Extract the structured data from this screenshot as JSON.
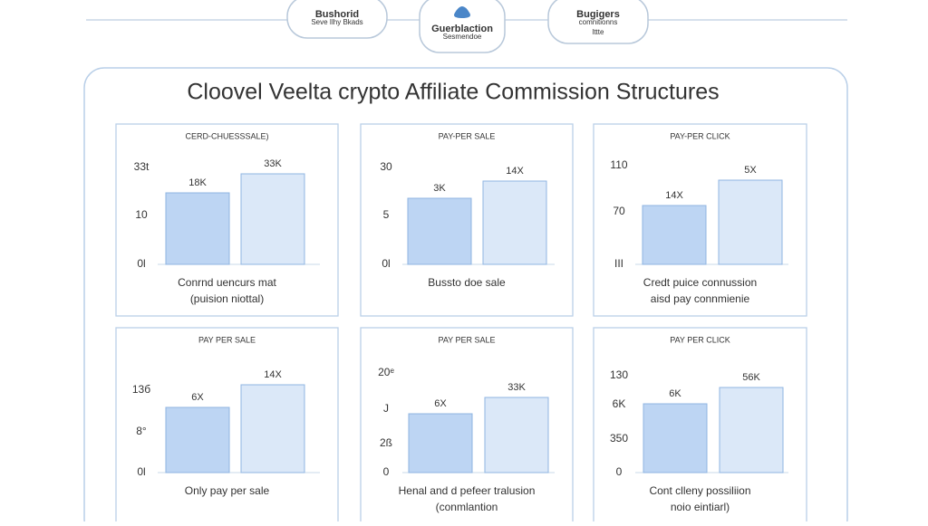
{
  "header": {
    "tabs": [
      {
        "lines": [
          "Bushorid",
          "Seve Ilhy Bkads"
        ]
      },
      {
        "lines": [
          "Guerblaction",
          "Sesmendoe"
        ]
      },
      {
        "lines": [
          "Bugigers",
          "comnitionns",
          "lttte"
        ]
      }
    ]
  },
  "title": "Cloovel Veelta crypto Affiliate Commission Structures",
  "panels": [
    {
      "heading": "CERD-CHUESSSALE)",
      "ticks": [
        "33t",
        "10",
        "0l"
      ],
      "bars": [
        "18K",
        "33K"
      ],
      "caption": [
        "Conrnd uencurs mat",
        "(puision niottal)"
      ]
    },
    {
      "heading": "PAY-PER SALE",
      "ticks": [
        "30",
        "5",
        "0l"
      ],
      "bars": [
        "3K",
        "14X"
      ],
      "caption": [
        "Bussto doe sale"
      ]
    },
    {
      "heading": "PAY-PER CLICK",
      "ticks": [
        "110",
        "70",
        "III"
      ],
      "bars": [
        "14X",
        "5X"
      ],
      "caption": [
        "Credt puice connussion",
        "aisd pay connmienie"
      ]
    },
    {
      "heading": "PAY PER SALE",
      "ticks": [
        "13б",
        "8°",
        "0l"
      ],
      "bars": [
        "6X",
        "14X"
      ],
      "caption": [
        "Only pay per sale"
      ]
    },
    {
      "heading": "PAY PER SALE",
      "ticks": [
        "20ᵉ",
        "J",
        "2ß",
        "0"
      ],
      "bars": [
        "6X",
        "33K"
      ],
      "caption": [
        "Henal and d pefeer tralusion",
        "(conmlantion"
      ]
    },
    {
      "heading": "PAY PER CLICK",
      "ticks": [
        "130",
        "6K",
        "350",
        "0"
      ],
      "bars": [
        "6K",
        "56K"
      ],
      "caption": [
        "Cont clleny possiliion",
        "noio eintiarl)"
      ]
    }
  ]
}
